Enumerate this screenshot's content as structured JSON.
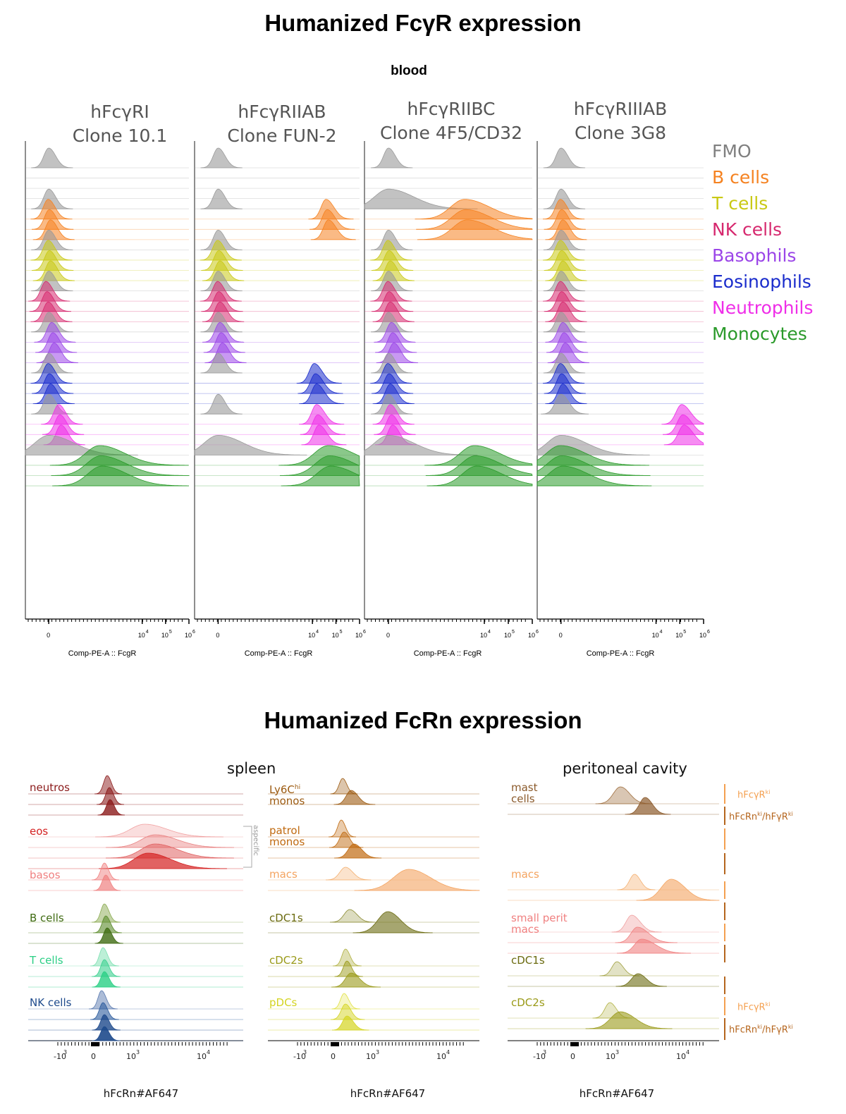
{
  "figure_title_1": "Humanized FcγR expression",
  "tissue_1": "blood",
  "figure_title_2": "Humanized FcRn expression",
  "fcgr_panels": [
    {
      "antibody": "hFcγRI",
      "clone": "Clone 10.1",
      "xlabel": "Comp-PE-A :: FcgR"
    },
    {
      "antibody": "hFcγRIIAB",
      "clone": "Clone FUN-2",
      "xlabel": "Comp-PE-A :: FcgR"
    },
    {
      "antibody": "hFcγRIIBC",
      "clone": "Clone 4F5/CD32",
      "xlabel": "Comp-PE-A :: FcgR"
    },
    {
      "antibody": "hFcγRIIIAB",
      "clone": "Clone 3G8",
      "xlabel": "Comp-PE-A :: FcgR"
    }
  ],
  "fcgr_ticks": {
    "t0": "0",
    "t4": "10",
    "t4e": "4",
    "t5": "10",
    "t5e": "5",
    "t6": "10",
    "t6e": "6"
  },
  "legend": [
    {
      "label": "FMO",
      "color": "#7f7f7f"
    },
    {
      "label": "B cells",
      "color": "#f58220"
    },
    {
      "label": "T cells",
      "color": "#c9c914"
    },
    {
      "label": "NK cells",
      "color": "#d6286e"
    },
    {
      "label": "Basophils",
      "color": "#9b45e8"
    },
    {
      "label": "Eosinophils",
      "color": "#1a2ccc"
    },
    {
      "label": "Neutrophils",
      "color": "#ef2ee8"
    },
    {
      "label": "Monocytes",
      "color": "#2a9a2a"
    }
  ],
  "fcrn_sections": {
    "spleen": "spleen",
    "peritoneal": "peritoneal cavity"
  },
  "fcrn_xlabel": "hFcRn#AF647",
  "fcrn_ticks": {
    "neg": "-10",
    "negexp": "3",
    "zero": "0",
    "t3": "10",
    "t3e": "3",
    "t4": "10",
    "t4e": "4"
  },
  "fcrn_panel1_labels": [
    {
      "text": "neutros",
      "color": "#8b1a1a"
    },
    {
      "text": "eos",
      "color": "#d42020"
    },
    {
      "text": "basos",
      "color": "#f08080"
    },
    {
      "text": "B cells",
      "color": "#3f6b12"
    },
    {
      "text": "T cells",
      "color": "#2bcf85"
    },
    {
      "text": "NK cells",
      "color": "#1e4a8c"
    }
  ],
  "aspecific_label": "aspecific",
  "fcrn_panel2_labels": [
    {
      "text": "Ly6C",
      "sup": "hi",
      "text2": "monos",
      "color": "#9c5a10"
    },
    {
      "text": "patrol",
      "text2": "monos",
      "color": "#c06a10"
    },
    {
      "text": "macs",
      "color": "#f4a460"
    },
    {
      "text": "cDC1s",
      "color": "#6b6b10"
    },
    {
      "text": "cDC2s",
      "color": "#9a9a18"
    },
    {
      "text": "pDCs",
      "color": "#d4d420"
    }
  ],
  "fcrn_panel3_labels": [
    {
      "text": "mast",
      "text2": "cells",
      "color": "#8b5a2b"
    },
    {
      "text": "macs",
      "color": "#f4a460"
    },
    {
      "text": "small perit",
      "text2": "macs",
      "color": "#f08080"
    },
    {
      "text": "cDC1s",
      "color": "#6b6b10"
    },
    {
      "text": "cDC2s",
      "color": "#9a9a18"
    }
  ],
  "genotype_labels": [
    {
      "text": "hFcγR",
      "sup": "ki",
      "color": "#f4a050"
    },
    {
      "text": "hFcRn",
      "sup": "ki",
      "text2": "/hFγR",
      "sup2": "ki",
      "color": "#b5651d"
    },
    {
      "text": "hFcγR",
      "sup": "ki",
      "color": "#f4a050"
    },
    {
      "text": "hFcRn",
      "sup": "ki",
      "text2": "/hFγR",
      "sup2": "ki",
      "color": "#b5651d"
    }
  ],
  "chart_data": {
    "type": "histogram-ridgeline",
    "panels": [
      {
        "name": "hFcγRI Clone 10.1",
        "peaks": {
          "FMO": 0.0,
          "B cells": 0.0,
          "T cells": 0.0,
          "NK cells": -0.1,
          "Basophils": 0.15,
          "Eosinophils": 0.0,
          "Neutrophils": 0.45,
          "Monocytes": 2.2
        }
      },
      {
        "name": "hFcγRIIAB Clone FUN-2",
        "peaks": {
          "FMO": 0.0,
          "B cells": 4.6,
          "T cells": 0.0,
          "NK cells": 0.0,
          "Basophils": 0.1,
          "Eosinophils": 4.1,
          "Neutrophils": 4.2,
          "Monocytes": 4.7
        }
      },
      {
        "name": "hFcγRIIBC Clone 4F5/CD32",
        "peaks": {
          "FMO": 0.0,
          "B cells": 3.2,
          "T cells": 0.0,
          "NK cells": 0.0,
          "Basophils": 0.15,
          "Eosinophils": 0.0,
          "Neutrophils": 0.1,
          "Monocytes": 3.6
        }
      },
      {
        "name": "hFcγRIIIAB Clone 3G8",
        "peaks": {
          "FMO": 0.0,
          "B cells": 0.0,
          "T cells": 0.0,
          "NK cells": 0.0,
          "Basophils": 0.1,
          "Eosinophils": 0.0,
          "Neutrophils": 5.1,
          "Monocytes": 0.0
        }
      }
    ],
    "xlabel": "Comp-PE-A :: FcgR",
    "fcrn_xlabel": "hFcRn#AF647"
  }
}
